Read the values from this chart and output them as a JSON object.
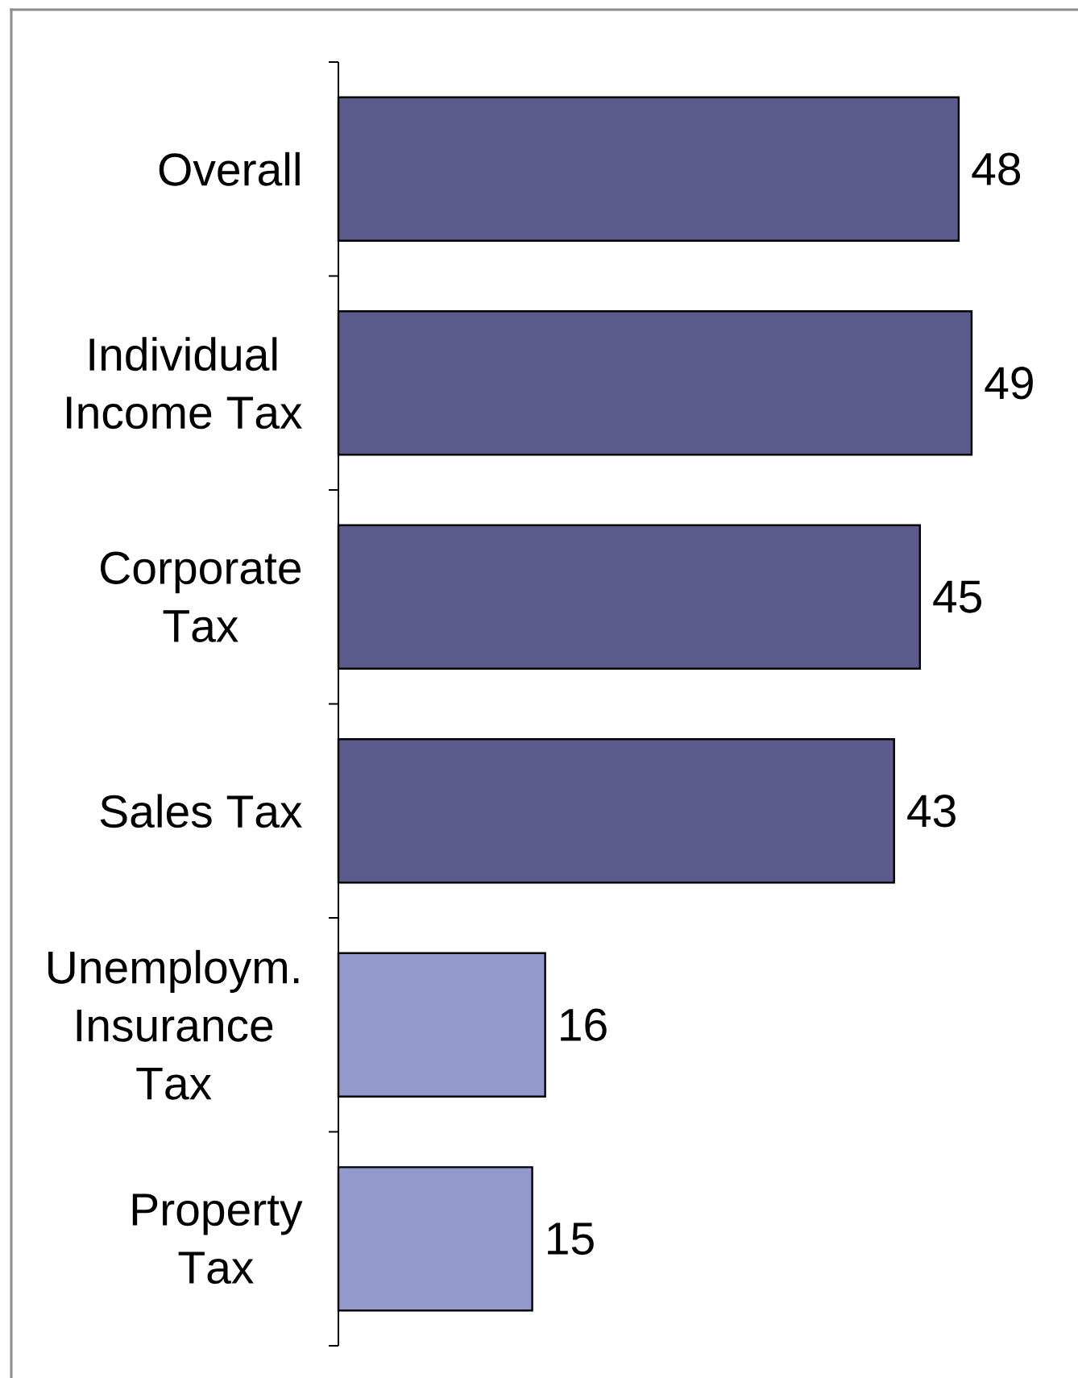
{
  "chart_data": {
    "type": "bar",
    "orientation": "horizontal",
    "categories": [
      "Overall",
      "Individual Income Tax",
      "Corporate Tax",
      "Sales Tax",
      "Unemploym. Insurance Tax",
      "Property Tax"
    ],
    "values": [
      48,
      49,
      45,
      43,
      16,
      15
    ],
    "colors": [
      "#5b5b8d",
      "#5b5b8d",
      "#5b5b8d",
      "#5b5b8d",
      "#9499cc",
      "#9499cc"
    ],
    "data_labels": true,
    "tick_labels": "y"
  }
}
